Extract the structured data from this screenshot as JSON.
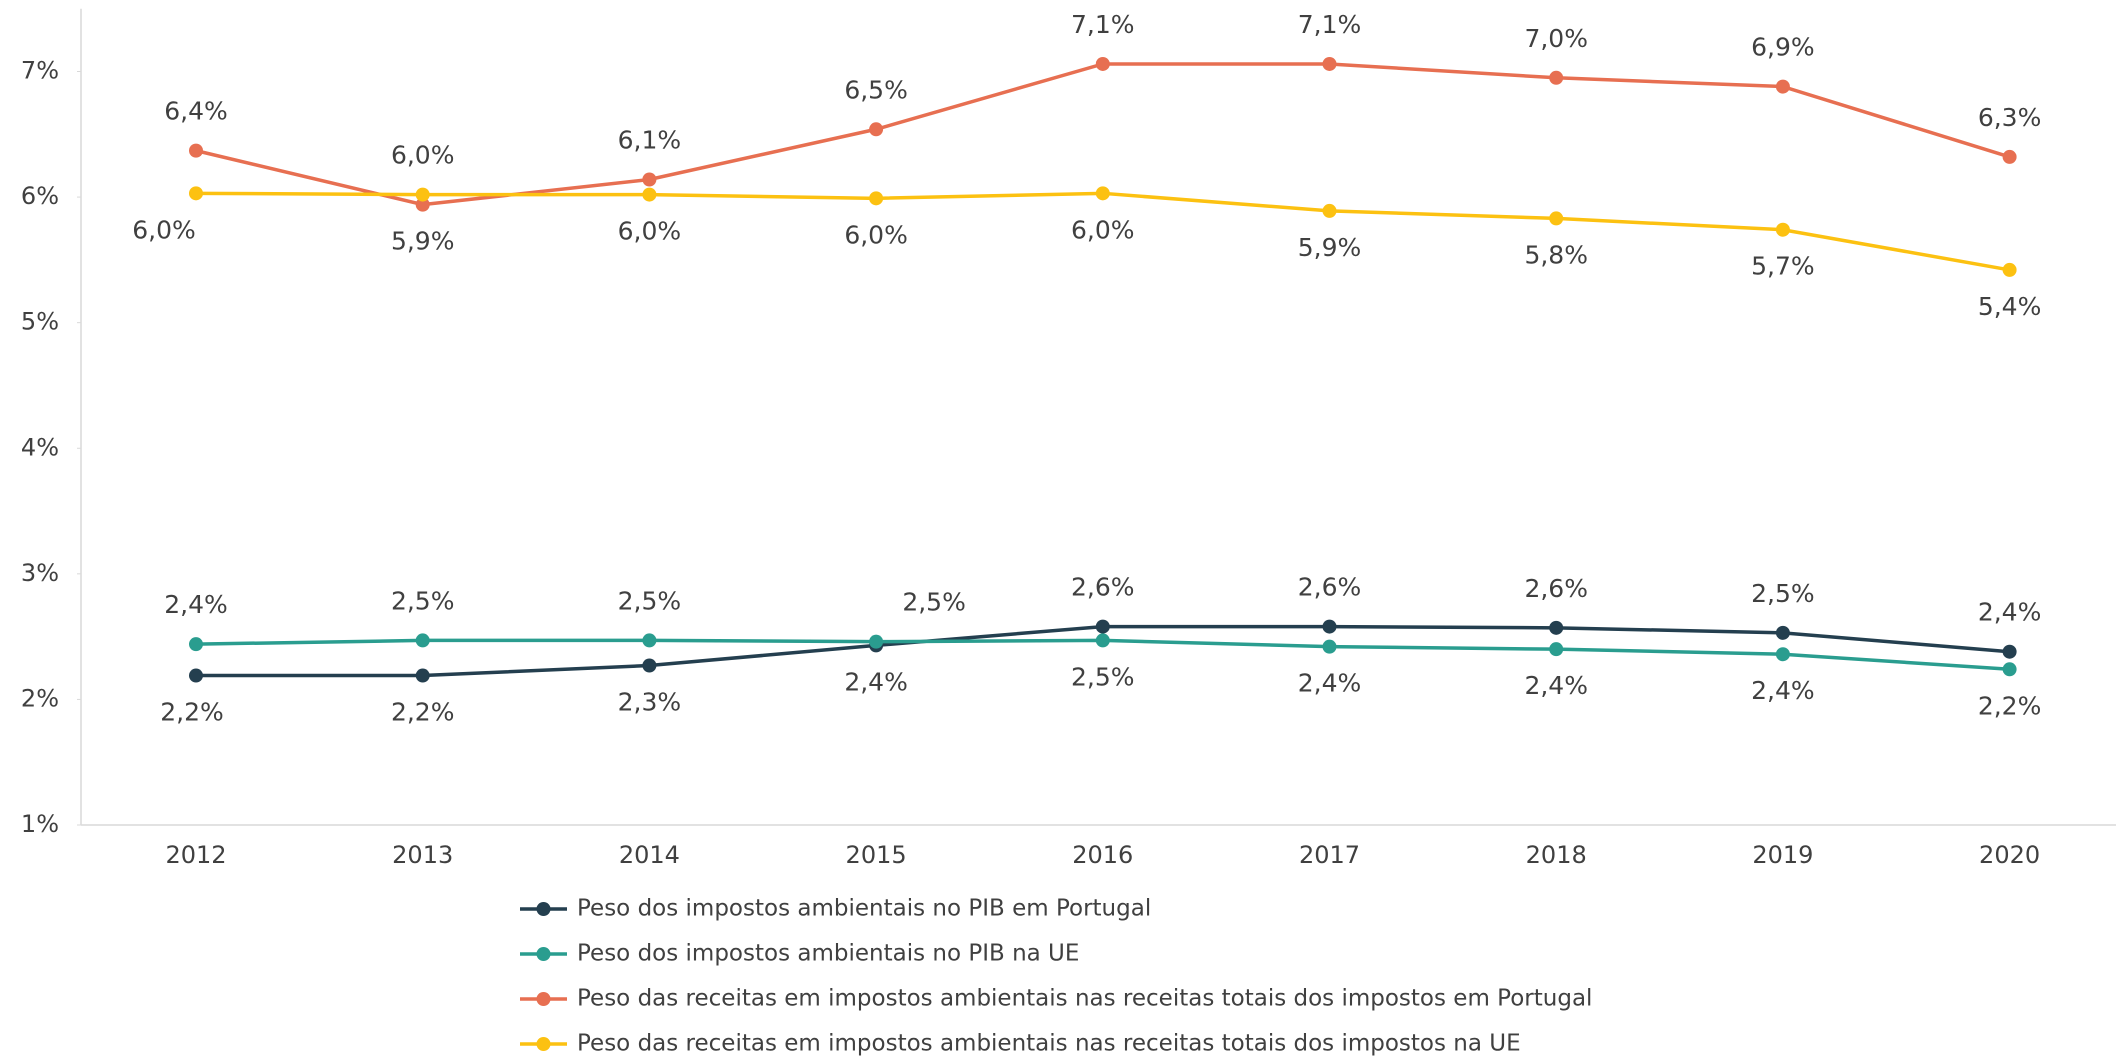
{
  "chart_data": {
    "type": "line",
    "categories": [
      "2012",
      "2013",
      "2014",
      "2015",
      "2016",
      "2017",
      "2018",
      "2019",
      "2020"
    ],
    "ylim": [
      1,
      7.5
    ],
    "yticks": [
      {
        "value": 1,
        "label": "1%"
      },
      {
        "value": 2,
        "label": "2%"
      },
      {
        "value": 3,
        "label": "3%"
      },
      {
        "value": 4,
        "label": "4%"
      },
      {
        "value": 5,
        "label": "5%"
      },
      {
        "value": 6,
        "label": "6%"
      },
      {
        "value": 7,
        "label": "7%"
      }
    ],
    "grid": false,
    "legend": "bottom",
    "series": [
      {
        "name": "Peso dos impostos ambientais no PIB em Portugal",
        "color": "#243f4f",
        "values": [
          2.19,
          2.19,
          2.27,
          2.43,
          2.58,
          2.58,
          2.57,
          2.53,
          2.38
        ],
        "value_labels": [
          "2,2%",
          "2,2%",
          "2,3%",
          "2,4%",
          "2,6%",
          "2,6%",
          "2,6%",
          "2,5%",
          "2,4%"
        ]
      },
      {
        "name": "Peso dos impostos ambientais no PIB na UE",
        "color": "#2a9d8f",
        "values": [
          2.44,
          2.47,
          2.47,
          2.46,
          2.47,
          2.42,
          2.4,
          2.36,
          2.24
        ],
        "value_labels": [
          "2,4%",
          "2,5%",
          "2,5%",
          "2,5%",
          "2,5%",
          "2,4%",
          "2,4%",
          "2,4%",
          "2,2%"
        ]
      },
      {
        "name": "Peso das receitas em impostos ambientais nas receitas totais dos impostos em Portugal",
        "color": "#e76f51",
        "values": [
          6.37,
          5.94,
          6.14,
          6.54,
          7.06,
          7.06,
          6.95,
          6.88,
          6.32
        ],
        "value_labels": [
          "6,4%",
          "5,9%",
          "6,1%",
          "6,5%",
          "7,1%",
          "7,1%",
          "7,0%",
          "6,9%",
          "6,3%"
        ]
      },
      {
        "name": "Peso das receitas em impostos ambientais nas receitas totais dos impostos na UE",
        "color": "#fcc111",
        "values": [
          6.03,
          6.02,
          6.02,
          5.99,
          6.03,
          5.89,
          5.83,
          5.74,
          5.42
        ],
        "value_labels": [
          "6,0%",
          "6,0%",
          "6,0%",
          "6,0%",
          "6,0%",
          "5,9%",
          "5,8%",
          "5,7%",
          "5,4%"
        ]
      }
    ]
  }
}
